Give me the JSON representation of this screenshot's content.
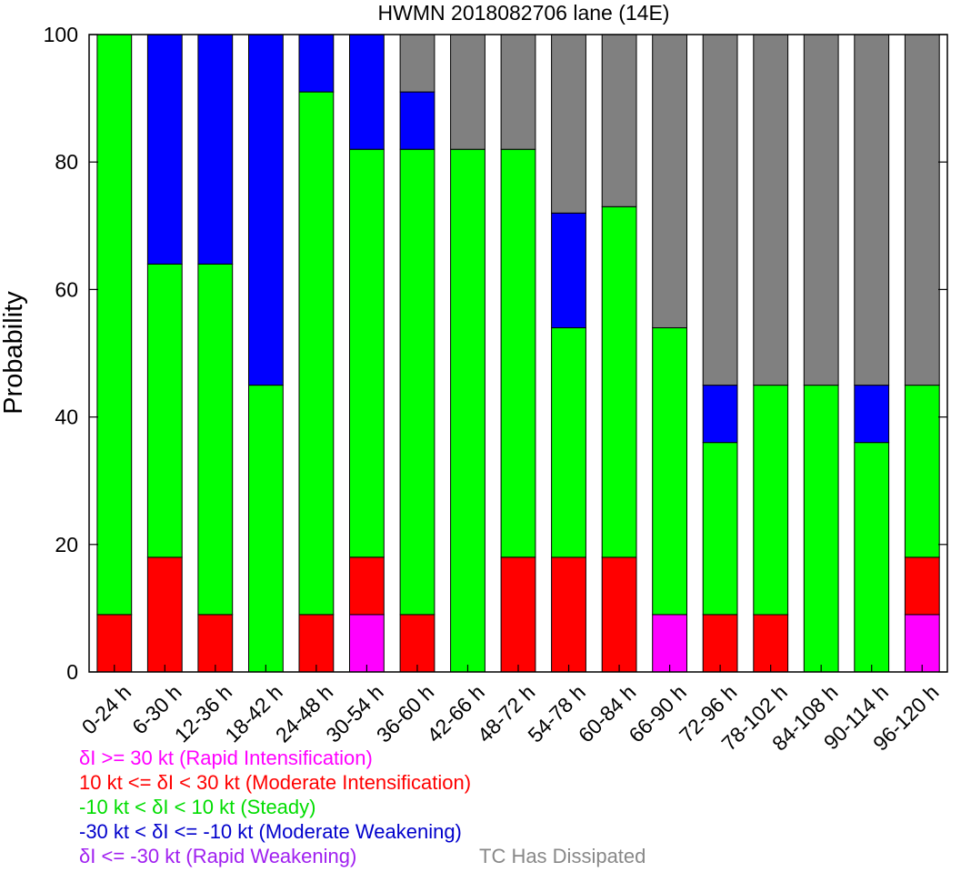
{
  "chart_data": {
    "type": "bar",
    "stacked": true,
    "title": "HWMN 2018082706 lane (14E)",
    "xlabel": "",
    "ylabel": "Probability",
    "ylim": [
      0,
      100
    ],
    "yticks": [
      "0",
      "20",
      "40",
      "60",
      "80",
      "100"
    ],
    "categories": [
      "0-24 h",
      "6-30 h",
      "12-36 h",
      "18-42 h",
      "24-48 h",
      "30-54 h",
      "36-60 h",
      "42-66 h",
      "48-72 h",
      "54-78 h",
      "60-84 h",
      "66-90 h",
      "72-96 h",
      "78-102 h",
      "84-108 h",
      "90-114 h",
      "96-120 h"
    ],
    "series": [
      {
        "name": "δI >= 30 kt (Rapid Intensification)",
        "color": "#ff00ff",
        "values": [
          0,
          0,
          0,
          0,
          0,
          9,
          0,
          0,
          0,
          0,
          0,
          9,
          0,
          0,
          0,
          0,
          9
        ]
      },
      {
        "name": "10 kt <= δI < 30 kt (Moderate Intensification)",
        "color": "#ff0000",
        "values": [
          9,
          18,
          9,
          0,
          9,
          9,
          9,
          0,
          18,
          18,
          18,
          0,
          9,
          9,
          0,
          0,
          9
        ]
      },
      {
        "name": "-10 kt < δI < 10 kt (Steady)",
        "color": "#00ff00",
        "values": [
          91,
          46,
          55,
          45,
          82,
          64,
          73,
          82,
          64,
          36,
          55,
          45,
          27,
          36,
          45,
          36,
          27
        ]
      },
      {
        "name": "-30 kt < δI <= -10 kt (Moderate Weakening)",
        "color": "#0000ff",
        "values": [
          0,
          36,
          36,
          55,
          9,
          18,
          9,
          0,
          0,
          18,
          0,
          0,
          9,
          0,
          0,
          9,
          0
        ]
      },
      {
        "name": "δI <= -30 kt (Rapid Weakening)",
        "color": "#a020f0",
        "values": [
          0,
          0,
          0,
          0,
          0,
          0,
          0,
          0,
          0,
          0,
          0,
          0,
          0,
          0,
          0,
          0,
          0
        ]
      },
      {
        "name": "TC Has Dissipated",
        "color": "#808080",
        "values": [
          0,
          0,
          0,
          0,
          0,
          0,
          9,
          18,
          18,
          28,
          27,
          46,
          55,
          55,
          55,
          55,
          55
        ]
      }
    ],
    "legend": [
      {
        "label": "δI >= 30 kt (Rapid Intensification)",
        "color": "#ff00ff"
      },
      {
        "label": "10 kt <= δI < 30 kt (Moderate Intensification)",
        "color": "#ff0000"
      },
      {
        "label": "-10 kt < δI < 10 kt (Steady)",
        "color": "#00dd00"
      },
      {
        "label": "-30 kt < δI <= -10 kt (Moderate Weakening)",
        "color": "#0000cc"
      },
      {
        "label": "δI <= -30 kt (Rapid Weakening)",
        "color": "#a020f0"
      },
      {
        "label": "TC Has Dissipated",
        "color": "#888888"
      }
    ],
    "legend_position": "bottom-left",
    "grid": false
  }
}
